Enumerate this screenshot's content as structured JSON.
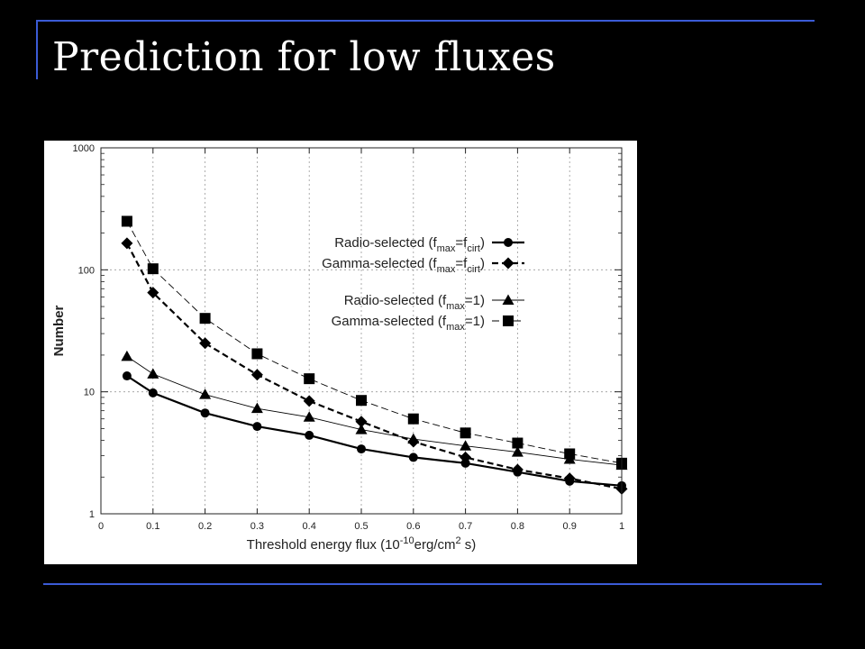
{
  "slide": {
    "title": "Prediction for low fluxes"
  },
  "chart_data": {
    "type": "line",
    "yscale": "log",
    "xlim": [
      0,
      1
    ],
    "ylim": [
      1,
      1000
    ],
    "xticks": [
      0,
      0.1,
      0.2,
      0.3,
      0.4,
      0.5,
      0.6,
      0.7,
      0.8,
      0.9,
      1
    ],
    "xtick_labels": [
      "0",
      "0.1",
      "0.2",
      "0.3",
      "0.4",
      "0.5",
      "0.6",
      "0.7",
      "0.8",
      "0.9",
      "1"
    ],
    "yticks": [
      1,
      10,
      100,
      1000
    ],
    "ytick_labels": [
      "1",
      "10",
      "100",
      "1000"
    ],
    "xlabel": {
      "prefix": "Threshold energy flux (10",
      "exp": "-10",
      "mid": "erg/cm",
      "exp2": "2",
      "suffix": " s)"
    },
    "ylabel": "Number",
    "legend_position": "top-right",
    "x": [
      0.05,
      0.1,
      0.2,
      0.3,
      0.4,
      0.5,
      0.6,
      0.7,
      0.8,
      0.9,
      1.0
    ],
    "series": [
      {
        "legend": {
          "main": "Radio-selected (f",
          "sub1": "max",
          "mid": "=f",
          "sub2": "cirt",
          "end": ")"
        },
        "marker": "circle",
        "line": "solid-thick",
        "values": [
          13.5,
          9.8,
          6.7,
          5.2,
          4.4,
          3.4,
          2.9,
          2.6,
          2.2,
          1.85,
          1.7
        ]
      },
      {
        "legend": {
          "main": "Gamma-selected (f",
          "sub1": "max",
          "mid": "=f",
          "sub2": "cirt",
          "end": ")"
        },
        "marker": "diamond",
        "line": "dashed-thick",
        "values": [
          165,
          65,
          25,
          13.8,
          8.4,
          5.7,
          3.9,
          2.9,
          2.3,
          1.95,
          1.6
        ]
      },
      {
        "legend": {
          "main": "Radio-selected (f",
          "sub1": "max",
          "mid": "=1",
          "sub2": "",
          "end": ")"
        },
        "marker": "triangle",
        "line": "solid-thin",
        "values": [
          19.5,
          14,
          9.5,
          7.3,
          6.2,
          4.9,
          4.1,
          3.6,
          3.2,
          2.8,
          2.5
        ]
      },
      {
        "legend": {
          "main": "Gamma-selected (f",
          "sub1": "max",
          "mid": "=1",
          "sub2": "",
          "end": ")"
        },
        "marker": "square",
        "line": "dashed-thin",
        "values": [
          250,
          102,
          40,
          20.5,
          12.8,
          8.5,
          6.0,
          4.6,
          3.8,
          3.1,
          2.6
        ]
      }
    ]
  }
}
